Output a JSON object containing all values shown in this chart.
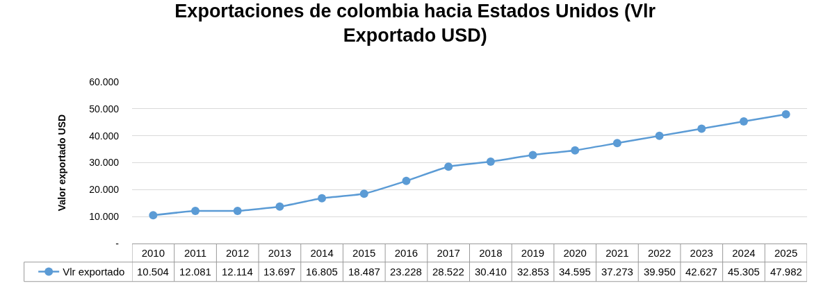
{
  "chart_data": {
    "type": "line",
    "title": "Exportaciones de colombia hacia Estados Unidos (Vlr Exportado USD)",
    "ylabel": "Valor exportado USD",
    "categories": [
      "2010",
      "2011",
      "2012",
      "2013",
      "2014",
      "2015",
      "2016",
      "2017",
      "2018",
      "2019",
      "2020",
      "2021",
      "2022",
      "2023",
      "2024",
      "2025"
    ],
    "series": [
      {
        "name": "Vlr exportado",
        "color": "#5b9bd5",
        "values": [
          10504,
          12081,
          12114,
          13697,
          16805,
          18487,
          23228,
          28522,
          30410,
          32853,
          34595,
          37273,
          39950,
          42627,
          45305,
          47982
        ],
        "value_labels": [
          "10.504",
          "12.081",
          "12.114",
          "13.697",
          "16.805",
          "18.487",
          "23.228",
          "28.522",
          "30.410",
          "32.853",
          "34.595",
          "37.273",
          "39.950",
          "42.627",
          "45.305",
          "47.982"
        ]
      }
    ],
    "ylim": [
      0,
      60000
    ],
    "yticks": [
      {
        "value": 0,
        "label": "-"
      },
      {
        "value": 10000,
        "label": "10.000"
      },
      {
        "value": 20000,
        "label": "20.000"
      },
      {
        "value": 30000,
        "label": "30.000"
      },
      {
        "value": 40000,
        "label": "40.000"
      },
      {
        "value": 50000,
        "label": "50.000"
      },
      {
        "value": 60000,
        "label": "60.000"
      }
    ],
    "grid": "y",
    "legend": "bottom left",
    "marker": "circle",
    "line_style": "solid"
  }
}
